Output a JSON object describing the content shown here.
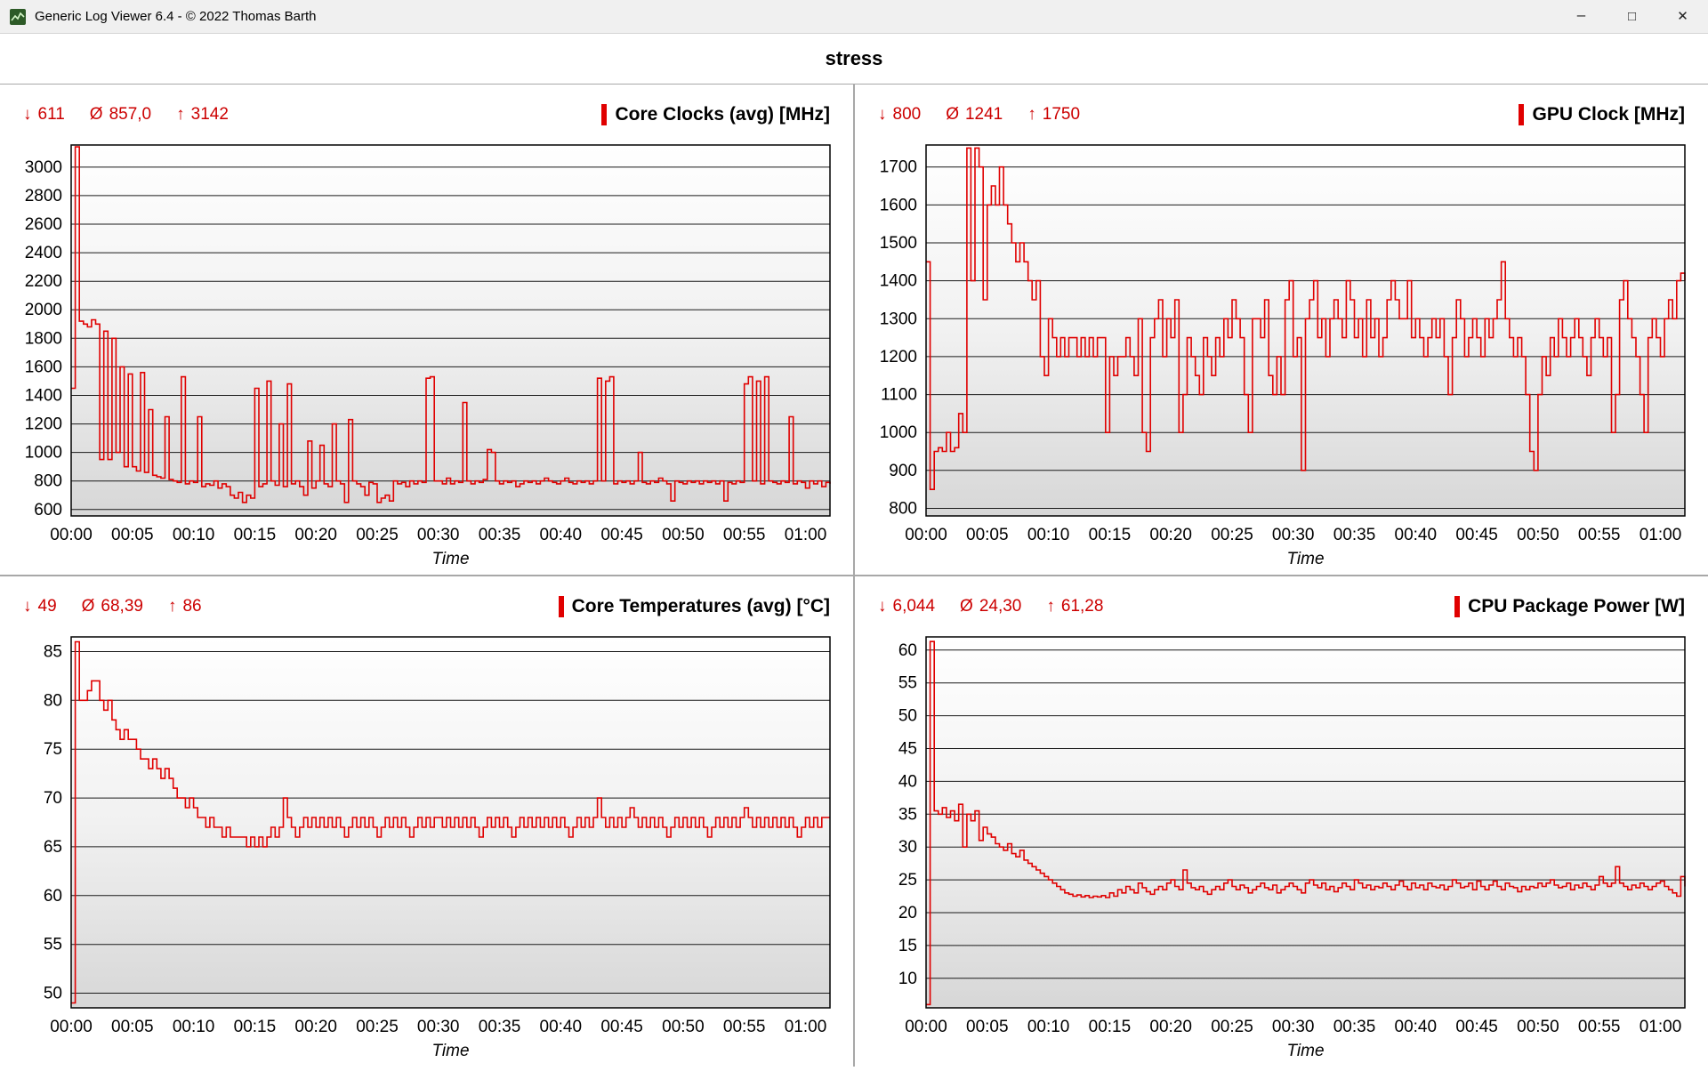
{
  "window": {
    "title": "Generic Log Viewer 6.4 - © 2022 Thomas Barth",
    "icons": {
      "minimize": "–",
      "maximize": "□",
      "close": "✕"
    }
  },
  "header": {
    "title": "stress"
  },
  "symbols": {
    "min": "↓",
    "avg": "Ø",
    "max": "↑"
  },
  "theme": {
    "stat_color": "#cc0000",
    "grid_line": "#1a1a1a",
    "plot_border": "#000000"
  },
  "chart_data": [
    {
      "type": "line",
      "title": "Core Clocks (avg) [MHz]",
      "stats": {
        "min": "611",
        "avg": "857,0",
        "max": "3142"
      },
      "series_color": "#e00000",
      "x": {
        "label": "Time",
        "tick_interval_minutes": 5,
        "max_minutes": 62,
        "tick_labels": [
          "00:00",
          "00:05",
          "00:10",
          "00:15",
          "00:20",
          "00:25",
          "00:30",
          "00:35",
          "00:40",
          "00:45",
          "00:50",
          "00:55",
          "01:00"
        ]
      },
      "y": {
        "min": 555,
        "max": 3155,
        "ticks": [
          600,
          800,
          1000,
          1200,
          1400,
          1600,
          1800,
          2000,
          2200,
          2400,
          2600,
          2800,
          3000
        ]
      },
      "sample_interval_seconds": 20,
      "values": [
        1450,
        3142,
        1920,
        1900,
        1880,
        1930,
        1900,
        950,
        1850,
        950,
        1800,
        1000,
        1600,
        900,
        1550,
        900,
        870,
        1560,
        860,
        1300,
        840,
        830,
        820,
        1250,
        810,
        800,
        790,
        1530,
        780,
        800,
        790,
        1250,
        760,
        780,
        770,
        800,
        750,
        780,
        760,
        700,
        680,
        720,
        650,
        700,
        680,
        1450,
        760,
        780,
        1500,
        800,
        770,
        1200,
        760,
        1480,
        780,
        800,
        760,
        700,
        1080,
        750,
        800,
        1050,
        780,
        760,
        1200,
        800,
        780,
        650,
        1230,
        800,
        780,
        760,
        700,
        790,
        780,
        650,
        680,
        700,
        660,
        800,
        780,
        790,
        760,
        800,
        780,
        800,
        790,
        1520,
        1530,
        800,
        800,
        780,
        820,
        780,
        800,
        790,
        1350,
        800,
        780,
        800,
        790,
        810,
        1020,
        1000,
        800,
        780,
        800,
        790,
        800,
        760,
        780,
        800,
        790,
        800,
        780,
        800,
        820,
        800,
        790,
        780,
        800,
        820,
        790,
        780,
        800,
        790,
        800,
        780,
        800,
        1520,
        800,
        1500,
        1530,
        780,
        800,
        790,
        800,
        780,
        800,
        1000,
        790,
        780,
        800,
        790,
        820,
        800,
        780,
        660,
        800,
        790,
        780,
        800,
        790,
        800,
        780,
        800,
        790,
        800,
        780,
        800,
        660,
        790,
        780,
        800,
        790,
        1480,
        1530,
        800,
        1500,
        780,
        1530,
        800,
        790,
        780,
        800,
        790,
        1250,
        780,
        800,
        790,
        750,
        800,
        780,
        800,
        760,
        790,
        780
      ]
    },
    {
      "type": "line",
      "title": "GPU Clock [MHz]",
      "stats": {
        "min": "800",
        "avg": "1241",
        "max": "1750"
      },
      "series_color": "#e00000",
      "x": {
        "label": "Time",
        "tick_interval_minutes": 5,
        "max_minutes": 62,
        "tick_labels": [
          "00:00",
          "00:05",
          "00:10",
          "00:15",
          "00:20",
          "00:25",
          "00:30",
          "00:35",
          "00:40",
          "00:45",
          "00:50",
          "00:55",
          "01:00"
        ]
      },
      "y": {
        "min": 780,
        "max": 1758,
        "ticks": [
          800,
          900,
          1000,
          1100,
          1200,
          1300,
          1400,
          1500,
          1600,
          1700
        ]
      },
      "sample_interval_seconds": 20,
      "values": [
        1450,
        850,
        950,
        960,
        950,
        1000,
        950,
        960,
        1050,
        1000,
        1750,
        1400,
        1750,
        1700,
        1350,
        1600,
        1650,
        1600,
        1700,
        1600,
        1550,
        1500,
        1450,
        1500,
        1450,
        1400,
        1350,
        1400,
        1200,
        1150,
        1300,
        1250,
        1200,
        1250,
        1200,
        1250,
        1250,
        1200,
        1250,
        1200,
        1250,
        1200,
        1250,
        1250,
        1000,
        1200,
        1150,
        1200,
        1200,
        1250,
        1200,
        1150,
        1300,
        1000,
        950,
        1250,
        1300,
        1350,
        1200,
        1300,
        1250,
        1350,
        1000,
        1100,
        1250,
        1200,
        1150,
        1100,
        1250,
        1200,
        1150,
        1250,
        1200,
        1300,
        1250,
        1350,
        1300,
        1250,
        1100,
        1000,
        1300,
        1300,
        1250,
        1350,
        1150,
        1100,
        1200,
        1100,
        1350,
        1400,
        1200,
        1250,
        900,
        1300,
        1350,
        1400,
        1250,
        1300,
        1200,
        1300,
        1350,
        1300,
        1250,
        1400,
        1350,
        1250,
        1300,
        1200,
        1350,
        1250,
        1300,
        1200,
        1250,
        1350,
        1400,
        1350,
        1300,
        1300,
        1400,
        1250,
        1300,
        1250,
        1200,
        1250,
        1300,
        1250,
        1300,
        1200,
        1100,
        1250,
        1350,
        1300,
        1200,
        1250,
        1300,
        1250,
        1200,
        1300,
        1250,
        1300,
        1350,
        1450,
        1300,
        1250,
        1200,
        1250,
        1200,
        1100,
        950,
        900,
        1100,
        1200,
        1150,
        1250,
        1200,
        1300,
        1250,
        1200,
        1250,
        1300,
        1250,
        1200,
        1150,
        1250,
        1300,
        1250,
        1200,
        1250,
        1000,
        1100,
        1350,
        1400,
        1300,
        1250,
        1200,
        1100,
        1000,
        1250,
        1300,
        1250,
        1200,
        1300,
        1350,
        1300,
        1400,
        1420,
        1400
      ]
    },
    {
      "type": "line",
      "title": "Core Temperatures (avg) [°C]",
      "stats": {
        "min": "49",
        "avg": "68,39",
        "max": "86"
      },
      "series_color": "#e00000",
      "x": {
        "label": "Time",
        "tick_interval_minutes": 5,
        "max_minutes": 62,
        "tick_labels": [
          "00:00",
          "00:05",
          "00:10",
          "00:15",
          "00:20",
          "00:25",
          "00:30",
          "00:35",
          "00:40",
          "00:45",
          "00:50",
          "00:55",
          "01:00"
        ]
      },
      "y": {
        "min": 48.5,
        "max": 86.5,
        "ticks": [
          50,
          55,
          60,
          65,
          70,
          75,
          80,
          85
        ]
      },
      "sample_interval_seconds": 20,
      "values": [
        49,
        86,
        80,
        80,
        81,
        82,
        82,
        80,
        79,
        80,
        78,
        77,
        76,
        77,
        76,
        76,
        75,
        74,
        74,
        73,
        74,
        73,
        72,
        73,
        72,
        71,
        70,
        70,
        69,
        70,
        69,
        68,
        68,
        67,
        68,
        67,
        67,
        66,
        67,
        66,
        66,
        66,
        66,
        65,
        66,
        65,
        66,
        65,
        66,
        67,
        66,
        67,
        70,
        68,
        67,
        66,
        67,
        68,
        67,
        68,
        67,
        68,
        67,
        68,
        67,
        68,
        67,
        66,
        67,
        68,
        67,
        68,
        67,
        68,
        67,
        66,
        67,
        68,
        67,
        68,
        67,
        68,
        67,
        66,
        67,
        68,
        67,
        68,
        67,
        68,
        68,
        67,
        68,
        67,
        68,
        67,
        68,
        67,
        68,
        67,
        66,
        67,
        68,
        67,
        68,
        67,
        68,
        67,
        66,
        67,
        68,
        67,
        68,
        67,
        68,
        67,
        68,
        67,
        68,
        67,
        68,
        67,
        66,
        67,
        68,
        67,
        68,
        67,
        68,
        70,
        68,
        67,
        68,
        67,
        68,
        67,
        68,
        69,
        68,
        67,
        68,
        67,
        68,
        67,
        68,
        67,
        66,
        67,
        68,
        67,
        68,
        67,
        68,
        67,
        68,
        67,
        66,
        67,
        68,
        67,
        68,
        67,
        68,
        67,
        68,
        69,
        68,
        67,
        68,
        67,
        68,
        67,
        68,
        67,
        68,
        67,
        68,
        67,
        66,
        67,
        68,
        67,
        68,
        67,
        68,
        68,
        68
      ]
    },
    {
      "type": "line",
      "title": "CPU Package Power [W]",
      "stats": {
        "min": "6,044",
        "avg": "24,30",
        "max": "61,28"
      },
      "series_color": "#e00000",
      "x": {
        "label": "Time",
        "tick_interval_minutes": 5,
        "max_minutes": 62,
        "tick_labels": [
          "00:00",
          "00:05",
          "00:10",
          "00:15",
          "00:20",
          "00:25",
          "00:30",
          "00:35",
          "00:40",
          "00:45",
          "00:50",
          "00:55",
          "01:00"
        ]
      },
      "y": {
        "min": 5.5,
        "max": 62,
        "ticks": [
          10,
          15,
          20,
          25,
          30,
          35,
          40,
          45,
          50,
          55,
          60
        ]
      },
      "sample_interval_seconds": 20,
      "values": [
        6,
        61.3,
        35.5,
        35,
        36,
        34.5,
        35.5,
        34,
        36.5,
        30,
        35,
        34,
        35.5,
        31,
        33,
        32,
        31.5,
        30.5,
        30,
        29.5,
        30.5,
        29,
        28.5,
        29.5,
        28,
        27.5,
        27,
        26.5,
        26,
        25.5,
        25,
        24.5,
        24,
        23.5,
        23,
        22.8,
        22.5,
        22.7,
        22.4,
        22.6,
        22.3,
        22.5,
        22.4,
        22.6,
        22.3,
        23,
        22.5,
        23.5,
        23,
        24,
        23.5,
        23,
        24.5,
        23.8,
        23.2,
        22.8,
        23.5,
        24,
        23.5,
        24.5,
        25,
        24,
        23.5,
        26.5,
        24.5,
        23.8,
        23.5,
        24,
        23.2,
        22.8,
        23.5,
        24,
        23.5,
        24.5,
        25,
        24,
        23.5,
        24.2,
        23.8,
        23,
        23.5,
        24,
        24.5,
        23.8,
        23.5,
        24.2,
        23,
        23.5,
        24,
        24.5,
        24,
        23.5,
        23,
        24.5,
        25,
        24.2,
        23.8,
        24.5,
        23.5,
        24,
        23.2,
        23.8,
        24.5,
        24,
        23.5,
        25,
        24.5,
        23.8,
        24.2,
        23.5,
        24,
        23.8,
        24.5,
        24,
        23.5,
        24.2,
        24.8,
        24,
        23.5,
        24.5,
        23.8,
        24.2,
        23.5,
        24.5,
        24,
        23.8,
        24.2,
        23.5,
        24,
        25,
        24.5,
        23.8,
        24,
        24.5,
        23.5,
        24.8,
        24,
        23.5,
        24.2,
        24.8,
        24,
        23.5,
        24.5,
        24,
        23.8,
        23.2,
        24,
        23.5,
        24,
        23.8,
        24.5,
        24,
        24.5,
        25,
        24.2,
        23.8,
        24,
        24.5,
        23.5,
        24.2,
        23.8,
        24.5,
        24,
        23.5,
        24.2,
        25.5,
        24.5,
        24,
        24.5,
        27,
        24.5,
        24,
        23.5,
        24.2,
        23.8,
        24.5,
        24,
        23.5,
        24,
        24.5,
        24.8,
        24,
        23.5,
        23,
        22.5,
        25.5,
        24
      ]
    }
  ]
}
